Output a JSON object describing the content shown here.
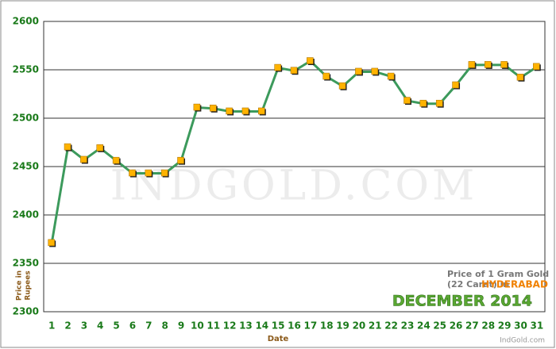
{
  "chart_data": {
    "type": "line",
    "watermark": "INDGOLD.COM",
    "annotation": {
      "line1": "Price of 1 Gram Gold",
      "line2": "(22 Carat) in",
      "city": "HYDERABAD",
      "month": "DECEMBER 2014",
      "site": "IndGold.com"
    },
    "x_label": "Date",
    "y_label": [
      "Price in",
      "Rupees"
    ],
    "categories": [
      "1",
      "2",
      "3",
      "4",
      "5",
      "6",
      "7",
      "8",
      "9",
      "10",
      "11",
      "12",
      "13",
      "14",
      "15",
      "16",
      "17",
      "18",
      "19",
      "20",
      "21",
      "22",
      "23",
      "24",
      "25",
      "26",
      "27",
      "28",
      "29",
      "30",
      "31"
    ],
    "series": [
      {
        "color": "#3c9a5c",
        "marker_color": "#ffb300",
        "values": [
          2371,
          2470,
          2457,
          2469,
          2456,
          2443,
          2443,
          2443,
          2456,
          2511,
          2510,
          2507,
          2507,
          2507,
          2552,
          2549,
          2559,
          2543,
          2533,
          2548,
          2548,
          2543,
          2518,
          2515,
          2515,
          2534,
          2555,
          2555,
          2555,
          2542,
          2553
        ]
      }
    ],
    "ylim": [
      2300,
      2600
    ],
    "yticks": [
      2300,
      2350,
      2400,
      2450,
      2500,
      2550,
      2600
    ],
    "grid": true
  }
}
